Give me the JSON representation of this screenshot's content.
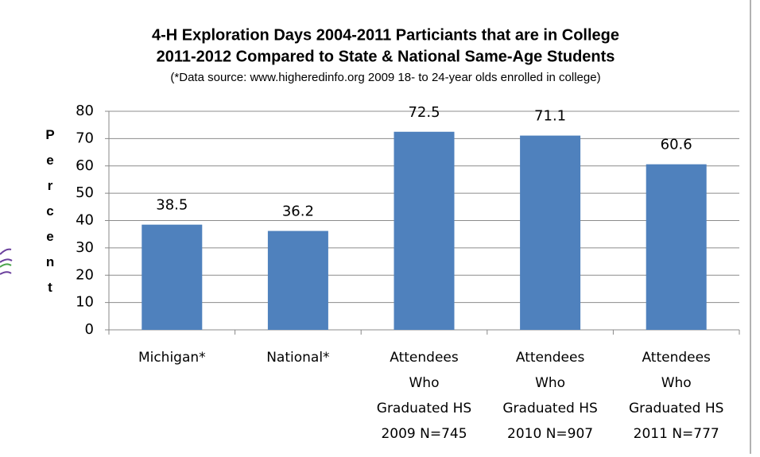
{
  "chart_data": {
    "type": "bar",
    "title": [
      "4-H Exploration Days 2004-2011 Particiants that are in College",
      "2011-2012 Compared to State & National Same-Age Students"
    ],
    "subtitle": "(*Data source: www.higheredinfo.org 2009 18- to 24-year olds enrolled in college)",
    "y_label": "Percent",
    "categories": [
      [
        "Michigan*"
      ],
      [
        "National*"
      ],
      [
        "Attendees",
        "Who",
        "Graduated HS",
        "2009 N=745"
      ],
      [
        "Attendees",
        "Who",
        "Graduated HS",
        "2010 N=907"
      ],
      [
        "Attendees",
        "Who",
        "Graduated HS",
        "2011 N=777"
      ]
    ],
    "values": [
      38.5,
      36.2,
      72.5,
      71.1,
      60.6
    ],
    "color": "#4f81bd",
    "ylim": [
      0,
      80
    ],
    "yticks": [
      0,
      10,
      20,
      30,
      40,
      50,
      60,
      70,
      80
    ],
    "grid": true
  }
}
